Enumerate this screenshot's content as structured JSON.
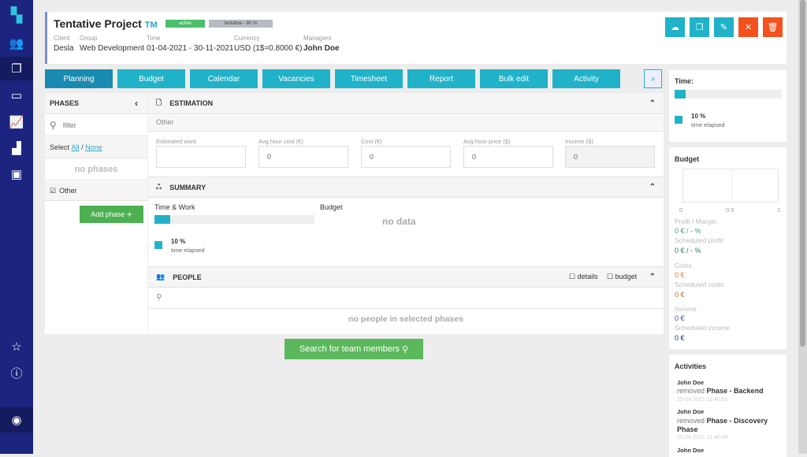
{
  "sidebar": {
    "icons": [
      "logo-icon",
      "people-icon",
      "documents-icon",
      "calendar-icon",
      "chart-icon",
      "factory-icon",
      "contact-card-icon",
      "star-icon",
      "help-icon",
      "user-icon"
    ]
  },
  "header": {
    "title": "Tentative Project",
    "code": "TM",
    "status": "active",
    "probability": "tentative - 80 %",
    "client_label": "Client",
    "client": "Desla",
    "group_label": "Group",
    "group": "Web Development",
    "time_label": "Time",
    "time": "01-04-2021 - 30-11-2021",
    "currency_label": "Currency",
    "currency": "USD (1$=0.8000 €)",
    "managers_label": "Managers",
    "managers": "John Doe"
  },
  "colors": {
    "accent": "#20b2c8",
    "sidebar": "#1b2580",
    "green": "#4caf50",
    "danger": "#f4511e"
  },
  "tabs": [
    "Planning",
    "Budget",
    "Calendar",
    "Vacancies",
    "Timesheet",
    "Report",
    "Bulk edit",
    "Activity"
  ],
  "more": "»",
  "phases": {
    "title": "PHASES",
    "filter_placeholder": "filter",
    "select": "Select",
    "all": "All",
    "sep": "/",
    "none": "None",
    "empty": "no phases",
    "item": "Other",
    "add": "Add phase"
  },
  "estimation": {
    "title": "ESTIMATION",
    "phase": "Other",
    "fields": [
      {
        "label": "Estimated work",
        "value": ""
      },
      {
        "label": "Avg hour cost (€)",
        "value": "0"
      },
      {
        "label": "Cost (€)",
        "value": "0"
      },
      {
        "label": "Avg hour price ($)",
        "value": "0"
      },
      {
        "label": "Income ($)",
        "value": "0"
      }
    ]
  },
  "summary": {
    "title": "SUMMARY",
    "time_work": "Time & Work",
    "budget": "Budget",
    "no_data": "no data",
    "percent": "10 %",
    "elapsed": "time elapsed",
    "progress": 0.1
  },
  "people": {
    "title": "PEOPLE",
    "details": "details",
    "budget": "budget",
    "empty": "no people in selected phases",
    "search_button": "Search for team members"
  },
  "time_panel": {
    "title": "Time:",
    "percent": "10 %",
    "elapsed": "time elapsed",
    "progress": 0.1
  },
  "budget_panel": {
    "title": "Budget",
    "ticks": [
      "0",
      "0.5",
      "1"
    ],
    "profit_label": "Profit / Margin",
    "profit": "0 € / - %",
    "sched_profit_label": "Scheduled profit",
    "sched_profit": "0 € / - %",
    "costs_label": "Costs",
    "costs": "0 €",
    "sched_costs_label": "Scheduled costs",
    "sched_costs": "0 €",
    "income_label": "Income",
    "income": "0 €",
    "sched_income_label": "Scheduled income",
    "sched_income": "0 €"
  },
  "activities": {
    "title": "Activities",
    "items": [
      {
        "user": "John Doe",
        "action": "removed",
        "object": "Phase - Backend",
        "time": "25-04-2021 11:40:51"
      },
      {
        "user": "John Doe",
        "action": "removed",
        "object": "Phase - Discovery Phase",
        "time": "25-04-2021 11:40:49"
      },
      {
        "user": "John Doe"
      }
    ]
  }
}
